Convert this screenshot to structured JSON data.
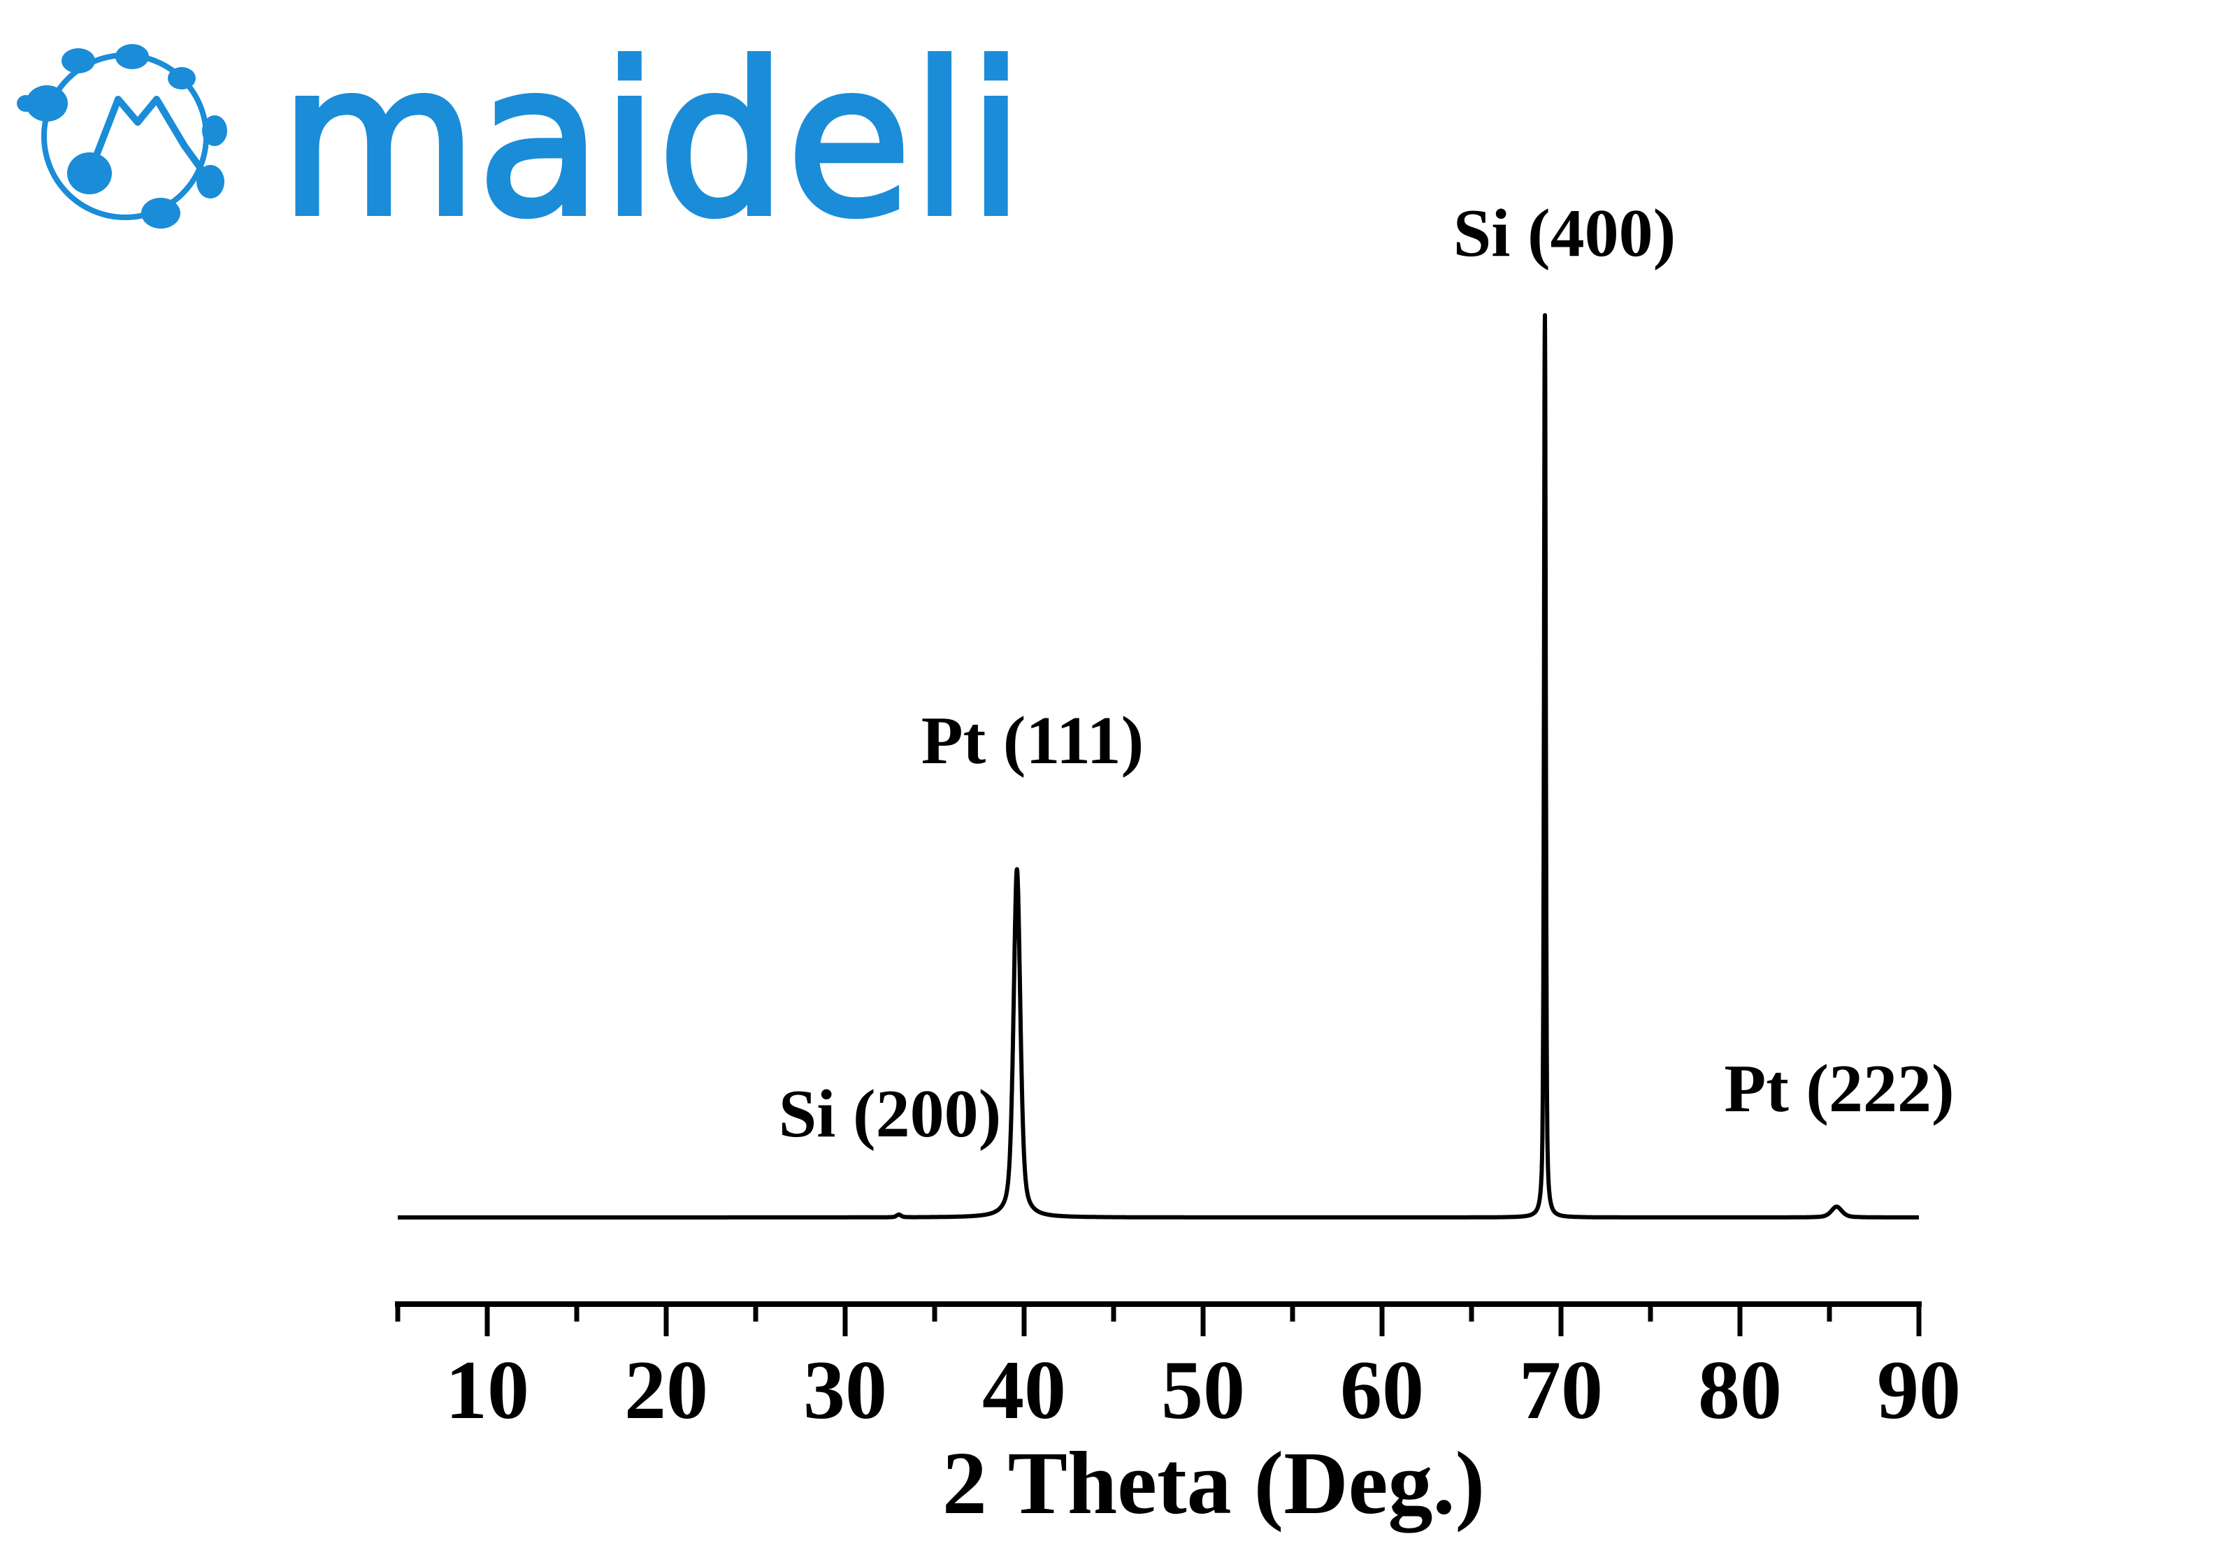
{
  "logo": {
    "text": "maideli",
    "color": "#1a8cd8"
  },
  "chart_data": {
    "type": "line",
    "title": "",
    "xlabel": "2 Theta (Deg.)",
    "ylabel": "",
    "xlim": [
      5,
      90
    ],
    "ylim": [
      0,
      100
    ],
    "xticks": [
      10,
      20,
      30,
      40,
      50,
      60,
      70,
      80,
      90
    ],
    "xticks_minor": [
      5,
      15,
      25,
      35,
      45,
      55,
      65,
      75,
      85
    ],
    "xtick_labels": [
      "10",
      "20",
      "30",
      "40",
      "50",
      "60",
      "70",
      "80",
      "90"
    ],
    "y_axis_visible": false,
    "grid": false,
    "line_color": "#000000",
    "peaks": [
      {
        "label": "Si (200)",
        "x": 33.0,
        "y": 0.3,
        "fwhm": 0.3
      },
      {
        "label": "Pt (111)",
        "x": 39.6,
        "y": 38.6,
        "fwhm": 0.45
      },
      {
        "label": "Si (400)",
        "x": 69.1,
        "y": 100,
        "fwhm": 0.12
      },
      {
        "label": "Pt (222)",
        "x": 85.4,
        "y": 1.2,
        "fwhm": 0.7
      }
    ]
  }
}
